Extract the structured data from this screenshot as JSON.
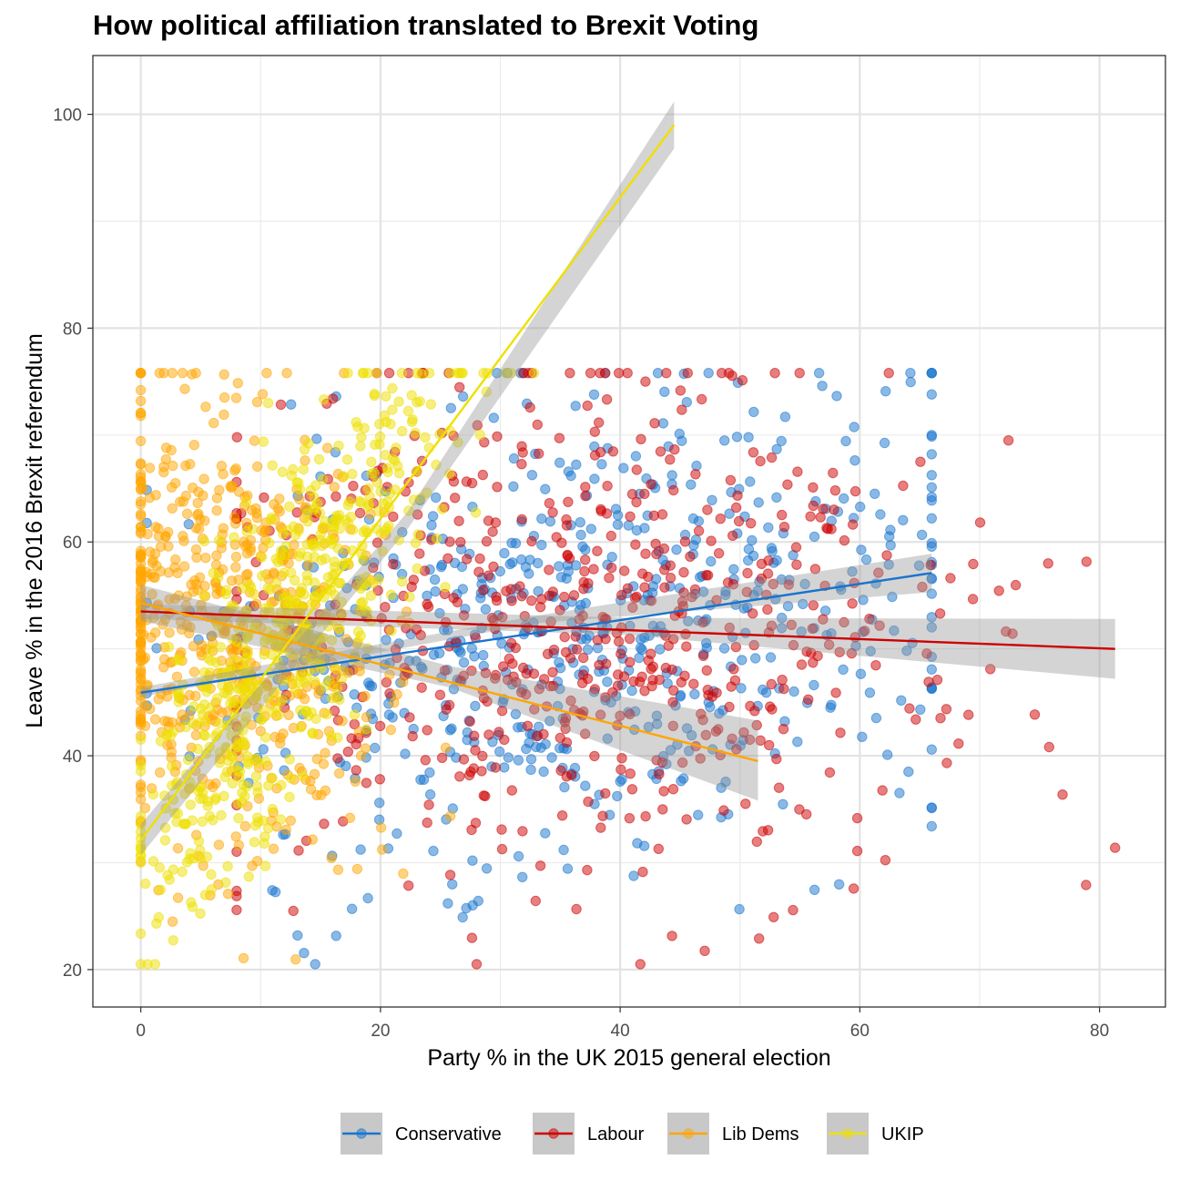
{
  "chart_data": {
    "type": "scatter",
    "title": "How political affiliation translated to Brexit Voting",
    "xlabel": "Party % in the UK 2015 general election",
    "ylabel": "Leave % in the 2016 Brexit referendum",
    "xlim": [
      -4,
      85.5
    ],
    "ylim": [
      16.5,
      105.5
    ],
    "x_ticks": [
      0,
      20,
      40,
      60,
      80
    ],
    "y_ticks": [
      20,
      40,
      60,
      80,
      100
    ],
    "grid": true,
    "legend_position": "bottom",
    "series": [
      {
        "name": "Conservative",
        "color": "#1874CD",
        "fit": {
          "x": [
            0,
            66
          ],
          "y": [
            45.9,
            57.1
          ],
          "band": [
            [
              45.5,
              46.4
            ],
            [
              52.4,
              53.1
            ],
            [
              55.3,
              58.9
            ]
          ]
        },
        "cloud": {
          "count": 640,
          "x_mean": 37,
          "x_sd": 16,
          "x_min": 0.5,
          "x_max": 66,
          "slope": 0.17,
          "intercept": 45.9,
          "resid_sd": 11,
          "seed": 11
        }
      },
      {
        "name": "Labour",
        "color": "#CD0000",
        "fit": {
          "x": [
            0,
            81.3
          ],
          "y": [
            53.5,
            50.0
          ],
          "band": [
            [
              52.8,
              54.2
            ],
            [
              51.3,
              52.9
            ],
            [
              47.2,
              52.8
            ]
          ]
        },
        "cloud": {
          "count": 640,
          "x_mean": 36,
          "x_sd": 15,
          "x_min": 8,
          "x_max": 81.3,
          "slope": -0.043,
          "intercept": 53.5,
          "resid_sd": 11.5,
          "seed": 23
        }
      },
      {
        "name": "Lib Dems",
        "color": "#FFA500",
        "fit": {
          "x": [
            0,
            51.5
          ],
          "y": [
            54.3,
            39.5
          ],
          "band": [
            [
              52.6,
              56.0
            ],
            [
              46.4,
              48.4
            ],
            [
              35.8,
              43.3
            ]
          ]
        },
        "cloud": {
          "count": 620,
          "x_mean": 7,
          "x_sd": 6.5,
          "x_min": 0,
          "x_max": 51.5,
          "slope": -0.29,
          "intercept": 54.3,
          "resid_sd": 10.5,
          "seed": 37
        }
      },
      {
        "name": "UKIP",
        "color": "#EEE000",
        "fit": {
          "x": [
            0,
            44.5
          ],
          "y": [
            32.1,
            99.0
          ],
          "band": [
            [
              30.7,
              33.6
            ],
            [
              61.2,
              62.8
            ],
            [
              96.8,
              101.2
            ]
          ]
        },
        "cloud": {
          "count": 620,
          "x_mean": 12,
          "x_sd": 6.5,
          "x_min": 0,
          "x_max": 44.5,
          "slope": 1.5,
          "intercept": 32.1,
          "resid_sd": 7.5,
          "seed": 51
        }
      }
    ]
  },
  "legend": {
    "items": [
      {
        "label": "Conservative"
      },
      {
        "label": "Labour"
      },
      {
        "label": "Lib Dems"
      },
      {
        "label": "UKIP"
      }
    ]
  }
}
